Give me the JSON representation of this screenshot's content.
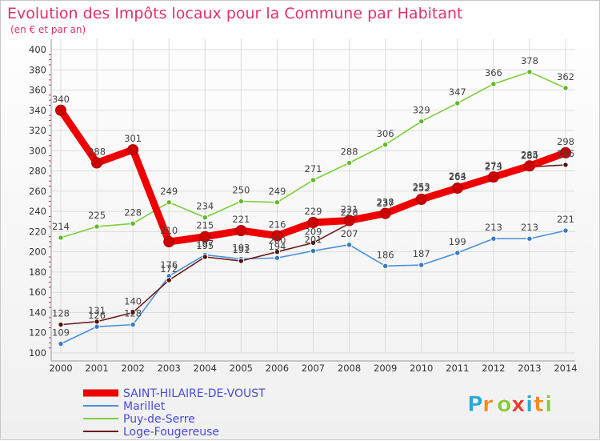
{
  "title": "Evolution des Impôts locaux pour la Commune par Habitant",
  "subtitle": "(en € et par an)",
  "logo": {
    "letters": [
      "P",
      "r",
      "o",
      "x",
      "i",
      "t",
      "i"
    ],
    "colors": [
      "#2aa8d8",
      "#f28a1e",
      "#8cc63f",
      "#e53b2e",
      "#2aa8d8",
      "#f28a1e",
      "#8cc63f"
    ]
  },
  "chart_data": {
    "type": "line",
    "title": "Evolution des Impôts locaux pour la Commune par Habitant",
    "subtitle": "(en € et par an)",
    "xlabel": "",
    "ylabel": "",
    "x": [
      "2000",
      "2001",
      "2002",
      "2003",
      "2004",
      "2005",
      "2006",
      "2007",
      "2008",
      "2009",
      "2010",
      "2011",
      "2012",
      "2013",
      "2014"
    ],
    "ylim": [
      100,
      400
    ],
    "yticks": [
      "100",
      "120",
      "140",
      "160",
      "180",
      "200",
      "220",
      "240",
      "260",
      "280",
      "300",
      "320",
      "340",
      "360",
      "380",
      "400"
    ],
    "grid": true,
    "legend_position": "bottom-left",
    "series": [
      {
        "name": "SAINT-HILAIRE-DE-VOUST",
        "color": "#ee0000",
        "values": [
          340,
          288,
          301,
          210,
          215,
          221,
          216,
          229,
          231,
          238,
          252,
          263,
          274,
          285,
          298
        ],
        "labels": [
          "340",
          "288",
          "301",
          "210",
          "215",
          "221",
          "216",
          "229",
          "231",
          "238",
          "252",
          "263",
          "274",
          "285",
          "298"
        ]
      },
      {
        "name": "Marillet",
        "color": "#4a90d9",
        "values": [
          109,
          126,
          128,
          176,
          197,
          193,
          194,
          201,
          207,
          186,
          187,
          199,
          213,
          213,
          221
        ],
        "labels": [
          "109",
          "126",
          "128",
          "176",
          "197",
          "193",
          "194",
          "201",
          "207",
          "186",
          "187",
          "199",
          "213",
          "213",
          "221"
        ]
      },
      {
        "name": "Puy-de-Serre",
        "color": "#7ccf3a",
        "values": [
          214,
          225,
          228,
          249,
          234,
          250,
          249,
          271,
          288,
          306,
          329,
          347,
          366,
          378,
          362
        ],
        "labels": [
          "214",
          "225",
          "228",
          "249",
          "234",
          "250",
          "249",
          "271",
          "288",
          "306",
          "329",
          "347",
          "366",
          "378",
          "362"
        ]
      },
      {
        "name": "Loge-Fougereuse",
        "color": "#6b1c1c",
        "values": [
          128,
          131,
          140,
          172,
          195,
          191,
          200,
          209,
          228,
          237,
          253,
          264,
          273,
          284,
          286
        ],
        "labels": [
          "128",
          "131",
          "140",
          "172",
          "195",
          "191",
          "200",
          "209",
          "228",
          "237",
          "253",
          "264",
          "273",
          "284",
          "286"
        ]
      }
    ]
  }
}
